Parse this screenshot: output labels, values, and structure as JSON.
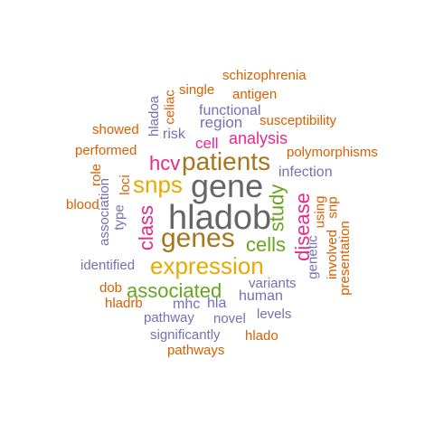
{
  "colors": {
    "orange": "#d95f02",
    "purple": "#7570b3",
    "magenta": "#e7298a",
    "green": "#66a61e",
    "gold": "#e6ab02",
    "brown": "#a6761d",
    "gray": "#666666"
  },
  "words": [
    {
      "text": "hladob",
      "color": "gray"
    },
    {
      "text": "gene",
      "color": "gray"
    },
    {
      "text": "genes",
      "color": "brown"
    },
    {
      "text": "patients",
      "color": "brown"
    },
    {
      "text": "expression",
      "color": "gold"
    },
    {
      "text": "snps",
      "color": "gold"
    },
    {
      "text": "associated",
      "color": "green"
    },
    {
      "text": "cells",
      "color": "green"
    },
    {
      "text": "study",
      "color": "green"
    },
    {
      "text": "disease",
      "color": "magenta"
    },
    {
      "text": "class",
      "color": "magenta"
    },
    {
      "text": "hcv",
      "color": "magenta"
    },
    {
      "text": "analysis",
      "color": "magenta"
    },
    {
      "text": "cell",
      "color": "magenta"
    },
    {
      "text": "functional",
      "color": "purple"
    },
    {
      "text": "region",
      "color": "purple"
    },
    {
      "text": "risk",
      "color": "purple"
    },
    {
      "text": "infection",
      "color": "purple"
    },
    {
      "text": "human",
      "color": "purple"
    },
    {
      "text": "variants",
      "color": "purple"
    },
    {
      "text": "hla",
      "color": "purple"
    },
    {
      "text": "mhc",
      "color": "purple"
    },
    {
      "text": "identified",
      "color": "purple"
    },
    {
      "text": "pathway",
      "color": "purple"
    },
    {
      "text": "novel",
      "color": "purple"
    },
    {
      "text": "levels",
      "color": "purple"
    },
    {
      "text": "significantly",
      "color": "purple"
    },
    {
      "text": "genetic",
      "color": "purple"
    },
    {
      "text": "type",
      "color": "purple"
    },
    {
      "text": "association",
      "color": "purple"
    },
    {
      "text": "hladoa",
      "color": "purple"
    },
    {
      "text": "schizophrenia",
      "color": "orange"
    },
    {
      "text": "single",
      "color": "orange"
    },
    {
      "text": "antigen",
      "color": "orange"
    },
    {
      "text": "susceptibility",
      "color": "orange"
    },
    {
      "text": "showed",
      "color": "orange"
    },
    {
      "text": "performed",
      "color": "orange"
    },
    {
      "text": "polymorphisms",
      "color": "orange"
    },
    {
      "text": "blood",
      "color": "orange"
    },
    {
      "text": "dob",
      "color": "orange"
    },
    {
      "text": "hladrb",
      "color": "orange"
    },
    {
      "text": "hlado",
      "color": "orange"
    },
    {
      "text": "pathways",
      "color": "orange"
    },
    {
      "text": "celiac",
      "color": "orange"
    },
    {
      "text": "role",
      "color": "orange"
    },
    {
      "text": "loci",
      "color": "orange"
    },
    {
      "text": "using",
      "color": "orange"
    },
    {
      "text": "snp",
      "color": "orange"
    },
    {
      "text": "involved",
      "color": "orange"
    },
    {
      "text": "presentation",
      "color": "orange"
    }
  ]
}
